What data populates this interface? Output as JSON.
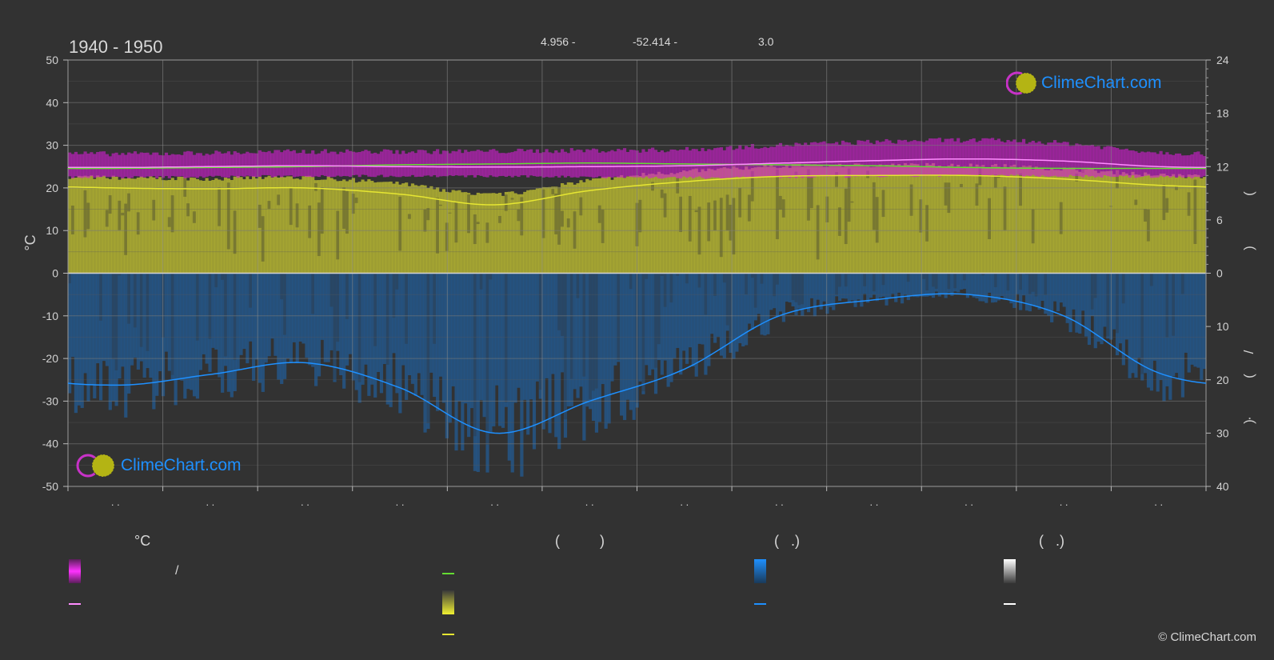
{
  "header": {
    "title": "1940 - 1950",
    "lat": "4.956 -",
    "lon": "-52.414 -",
    "elev": "3.0"
  },
  "logo": {
    "text": "ClimeChart.com"
  },
  "copyright": "© ClimeChart.com",
  "legend": {
    "col1_head": "°C",
    "col2_head": "(          )",
    "col3_head": "(   .)",
    "col4_head": "(   .)",
    "slash": "/"
  },
  "colors": {
    "background": "#323232",
    "temp_band": "#d21ed2",
    "temp_mean": "#ff8cff",
    "daylight": "#64dc32",
    "sunshine": "#c8c832",
    "sunshine_line": "#e6e632",
    "rain": "#1e64aa",
    "rain_line": "#1e90ff",
    "snow": "#ffffff"
  },
  "chart_data": {
    "type": "line",
    "title": "1940 - 1950",
    "ylabel_left": "°C",
    "ylim_left": [
      -50,
      50
    ],
    "yticks_left": [
      50,
      40,
      30,
      20,
      10,
      0,
      -10,
      -20,
      -30,
      -40,
      -50
    ],
    "yticks_right_top": [
      "24",
      "18",
      "12",
      "6",
      "0"
    ],
    "yticks_right_bottom": [
      "0",
      "10",
      "20",
      "30",
      "40"
    ],
    "right_label_glyphs": [
      "(",
      ")",
      "/",
      "(",
      "·",
      ")"
    ],
    "month_tick_labels": [
      ". .",
      ". .",
      ". .",
      ". .",
      ". .",
      ". .",
      ". .",
      ". .",
      ". .",
      ". .",
      ". .",
      ". ."
    ],
    "months": [
      1,
      2,
      3,
      4,
      5,
      6,
      7,
      8,
      9,
      10,
      11,
      12
    ],
    "series": [
      {
        "key": "temp_mean",
        "values": [
          24.8,
          25.0,
          25.2,
          25.0,
          24.9,
          25.0,
          25.2,
          25.8,
          26.4,
          26.8,
          26.3,
          25.0
        ]
      },
      {
        "key": "temp_max",
        "values": [
          28.0,
          28.2,
          28.5,
          28.5,
          28.6,
          28.8,
          29.0,
          30.0,
          30.8,
          31.2,
          30.5,
          28.4
        ]
      },
      {
        "key": "temp_min",
        "values": [
          22.5,
          22.6,
          22.8,
          22.8,
          22.7,
          22.6,
          22.4,
          22.5,
          22.7,
          22.9,
          22.8,
          22.6
        ]
      },
      {
        "key": "daylight",
        "values": [
          11.8,
          11.9,
          12.0,
          12.2,
          12.3,
          12.4,
          12.3,
          12.2,
          12.1,
          11.9,
          11.8,
          11.8
        ]
      },
      {
        "key": "sunshine",
        "values": [
          9.6,
          9.5,
          9.6,
          8.9,
          7.7,
          9.3,
          10.3,
          10.9,
          11.0,
          11.0,
          10.6,
          9.9
        ]
      },
      {
        "key": "rain_mm_per_day",
        "values": [
          21.0,
          19.0,
          16.8,
          21.5,
          30.0,
          24.0,
          18.0,
          8.0,
          5.0,
          4.0,
          8.0,
          18.7
        ]
      }
    ]
  }
}
